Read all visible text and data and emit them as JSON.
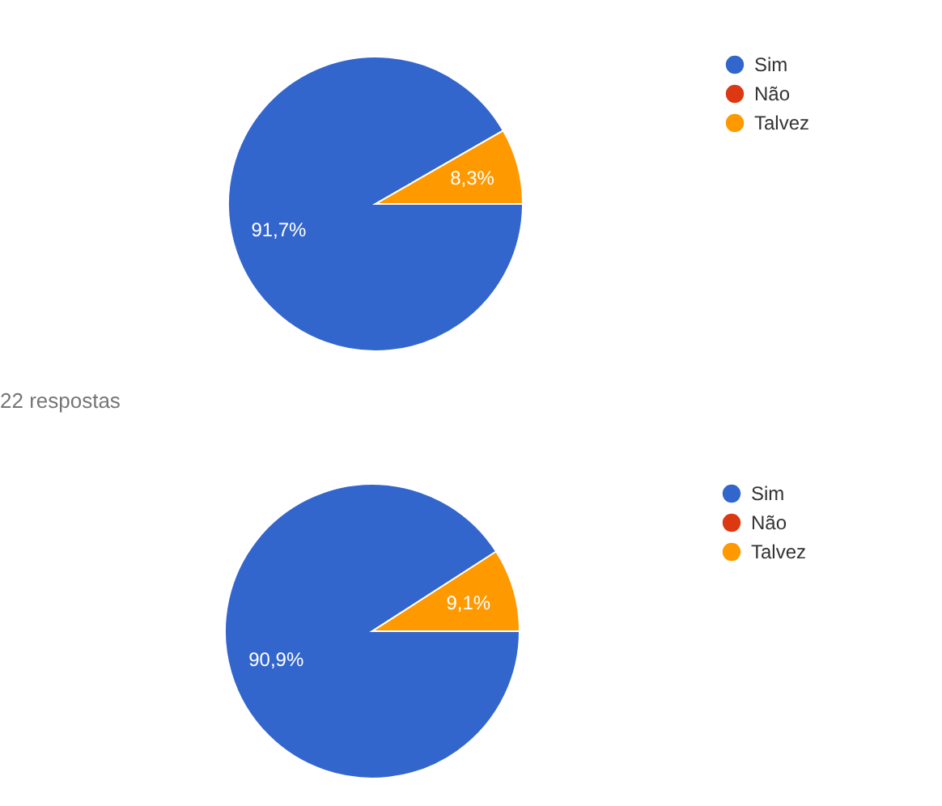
{
  "chart_data": [
    {
      "type": "pie",
      "categories": [
        "Sim",
        "Não",
        "Talvez"
      ],
      "values": [
        91.7,
        0,
        8.3
      ],
      "colors": [
        "#3366cc",
        "#dc3912",
        "#ff9900"
      ],
      "value_labels": [
        "91,7%",
        null,
        "8,3%"
      ],
      "legend": "top right"
    },
    {
      "type": "pie",
      "categories": [
        "Sim",
        "Não",
        "Talvez"
      ],
      "values": [
        90.9,
        0,
        9.1
      ],
      "colors": [
        "#3366cc",
        "#dc3912",
        "#ff9900"
      ],
      "value_labels": [
        "90,9%",
        null,
        "9,1%"
      ],
      "legend": "top right",
      "annotations": [
        "22 respostas"
      ]
    }
  ]
}
